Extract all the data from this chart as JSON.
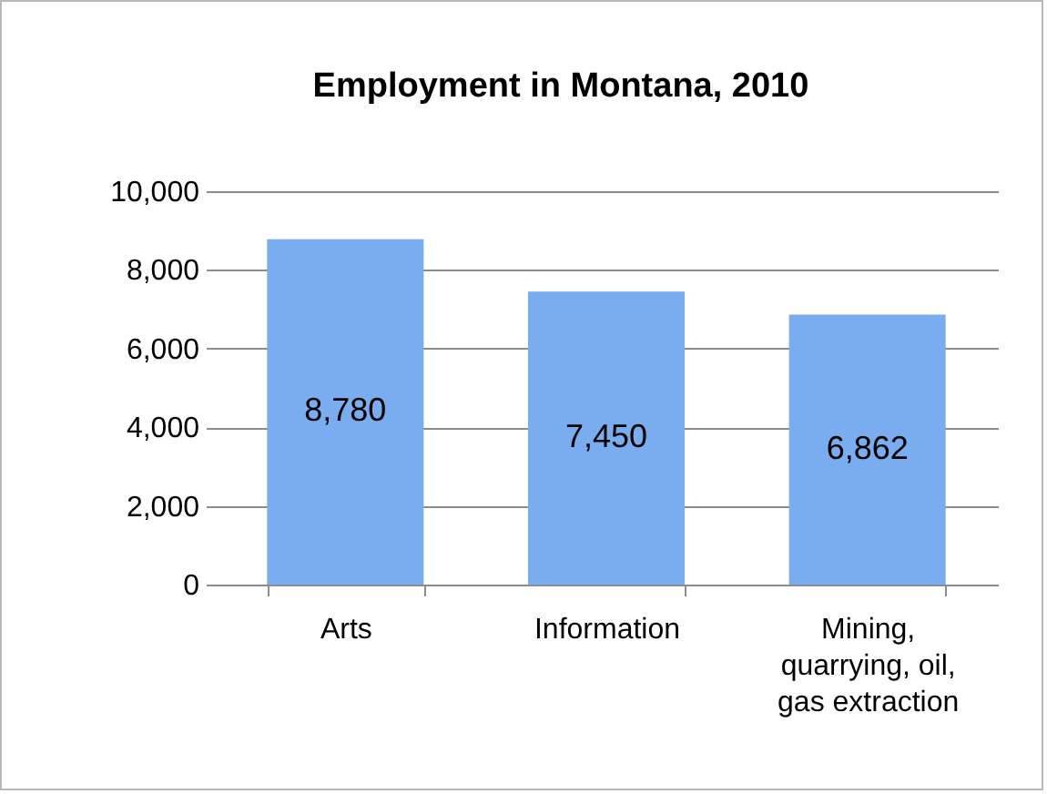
{
  "chart_data": {
    "type": "bar",
    "title": "Employment in Montana, 2010",
    "categories": [
      "Arts",
      "Information",
      "Mining, quarrying, oil, gas extraction"
    ],
    "values": [
      8780,
      7450,
      6862
    ],
    "value_labels": [
      "8,780",
      "7,450",
      "6,862"
    ],
    "color": "#7aacf0",
    "ylim": [
      0,
      10000
    ],
    "yticks": [
      0,
      {
        "value": 2000,
        "label": "2,000"
      },
      {
        "value": 4000,
        "label": "4,000"
      },
      {
        "value": 6000,
        "label": "6,000"
      },
      {
        "value": 8000,
        "label": "8,000"
      },
      {
        "value": 10000,
        "label": "10,000"
      }
    ],
    "grid": "y"
  }
}
